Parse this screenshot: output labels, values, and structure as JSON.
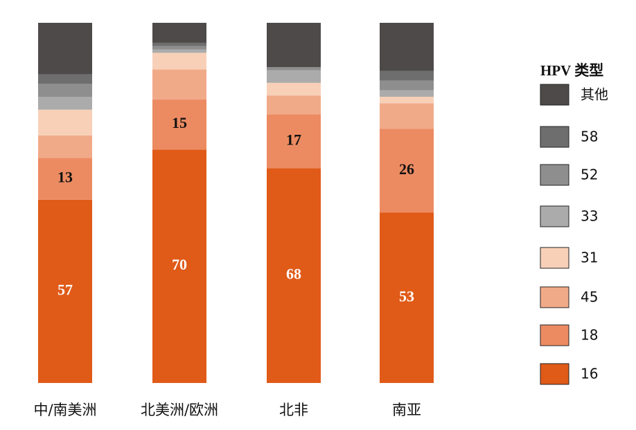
{
  "chart_data": {
    "type": "stacked_bar_100",
    "legend_title": "HPV 类型",
    "categories": [
      "中/南美洲",
      "北美洲/欧洲",
      "北非",
      "南亚"
    ],
    "series": [
      {
        "name": "16",
        "color": "#e05a18",
        "labels": true,
        "label_color": "#ffffff",
        "values": [
          57,
          70,
          68,
          53
        ]
      },
      {
        "name": "18",
        "color": "#ec8b62",
        "labels": true,
        "label_color": "#111111",
        "values": [
          13,
          15,
          17,
          26
        ]
      },
      {
        "name": "45",
        "color": "#f1aa88",
        "values": [
          7,
          9,
          6,
          8
        ]
      },
      {
        "name": "31",
        "color": "#f8d0b8",
        "values": [
          8,
          5,
          4,
          2
        ]
      },
      {
        "name": "33",
        "color": "#ababab",
        "values": [
          4,
          1,
          4,
          2
        ]
      },
      {
        "name": "52",
        "color": "#8e8e8e",
        "values": [
          4,
          1,
          1,
          3
        ]
      },
      {
        "name": "58",
        "color": "#6e6e6e",
        "values": [
          3,
          1,
          0,
          3
        ]
      },
      {
        "name": "其他",
        "color": "#4e4a4a",
        "values": [
          16,
          6,
          14,
          15
        ]
      }
    ]
  }
}
